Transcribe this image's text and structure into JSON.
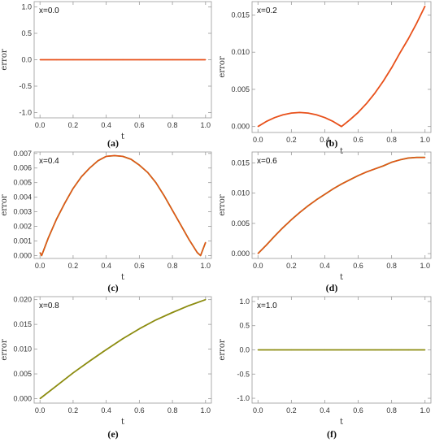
{
  "chart_data": [
    {
      "type": "line",
      "panel_label": "(a)",
      "annotation": "x=0.0",
      "xlabel": "t",
      "ylabel": "error",
      "xlim": [
        0,
        1
      ],
      "ylim": [
        -1.1,
        1.1
      ],
      "xticks": [
        "0.0",
        "0.2",
        "0.4",
        "0.6",
        "0.8",
        "1.0"
      ],
      "yticks": [
        "-1.0",
        "-0.5",
        "0.0",
        "0.5",
        "1.0"
      ],
      "ytick_values": [
        -1.0,
        -0.5,
        0.0,
        0.5,
        1.0
      ],
      "colors": [
        "#e8501a"
      ],
      "x": [
        0.0,
        0.1,
        0.2,
        0.3,
        0.4,
        0.5,
        0.6,
        0.7,
        0.8,
        0.9,
        1.0
      ],
      "y": [
        0,
        0,
        0,
        0,
        0,
        0,
        0,
        0,
        0,
        0,
        0
      ]
    },
    {
      "type": "line",
      "panel_label": "(b)",
      "annotation": "x=0.2",
      "xlabel": "t",
      "ylabel": "error",
      "xlim": [
        0,
        1
      ],
      "ylim": [
        -0.0008,
        0.0168
      ],
      "xticks": [
        "0.0",
        "0.2",
        "0.4",
        "0.6",
        "0.8",
        "1.0"
      ],
      "yticks": [
        "0.000",
        "0.005",
        "0.010",
        "0.015"
      ],
      "ytick_values": [
        0.0,
        0.005,
        0.01,
        0.015
      ],
      "colors": [
        "#e8501a"
      ],
      "x": [
        0.0,
        0.05,
        0.1,
        0.15,
        0.2,
        0.25,
        0.3,
        0.35,
        0.4,
        0.45,
        0.5,
        0.55,
        0.6,
        0.65,
        0.7,
        0.75,
        0.8,
        0.85,
        0.9,
        0.95,
        1.0
      ],
      "y": [
        0.0,
        0.00068,
        0.0012,
        0.00158,
        0.00181,
        0.00189,
        0.00181,
        0.00158,
        0.0012,
        0.00068,
        0.0,
        0.0009,
        0.0019,
        0.0031,
        0.0045,
        0.0061,
        0.0079,
        0.0099,
        0.0118,
        0.0139,
        0.0162
      ]
    },
    {
      "type": "line",
      "panel_label": "(c)",
      "annotation": "x=0.4",
      "xlabel": "t",
      "ylabel": "error",
      "xlim": [
        0,
        1
      ],
      "ylim": [
        -0.0002,
        0.0071
      ],
      "xticks": [
        "0.0",
        "0.2",
        "0.4",
        "0.6",
        "0.8",
        "1.0"
      ],
      "yticks": [
        "0.000",
        "0.001",
        "0.002",
        "0.003",
        "0.004",
        "0.005",
        "0.006",
        "0.007"
      ],
      "ytick_values": [
        0.0,
        0.001,
        0.002,
        0.003,
        0.004,
        0.005,
        0.006,
        0.007
      ],
      "colors": [
        "#8c8c10",
        "#e8501a"
      ],
      "x": [
        0.0,
        0.01,
        0.05,
        0.1,
        0.15,
        0.2,
        0.25,
        0.3,
        0.35,
        0.4,
        0.45,
        0.5,
        0.55,
        0.6,
        0.65,
        0.7,
        0.75,
        0.8,
        0.85,
        0.9,
        0.95,
        0.97,
        1.0
      ],
      "y": [
        0.0002,
        0.0,
        0.0012,
        0.0025,
        0.0036,
        0.0046,
        0.0054,
        0.006,
        0.0065,
        0.0068,
        0.00685,
        0.0068,
        0.0066,
        0.0062,
        0.0057,
        0.005,
        0.0041,
        0.0031,
        0.0021,
        0.0011,
        0.0002,
        0.0,
        0.0009
      ]
    },
    {
      "type": "line",
      "panel_label": "(d)",
      "annotation": "x=0.6",
      "xlabel": "t",
      "ylabel": "error",
      "xlim": [
        0,
        1
      ],
      "ylim": [
        -0.0008,
        0.0168
      ],
      "xticks": [
        "0.0",
        "0.2",
        "0.4",
        "0.6",
        "0.8",
        "1.0"
      ],
      "yticks": [
        "0.000",
        "0.005",
        "0.010",
        "0.015"
      ],
      "ytick_values": [
        0.0,
        0.005,
        0.01,
        0.015
      ],
      "colors": [
        "#8c8c10",
        "#e8501a"
      ],
      "x": [
        0.0,
        0.05,
        0.1,
        0.15,
        0.2,
        0.25,
        0.3,
        0.35,
        0.4,
        0.45,
        0.5,
        0.55,
        0.6,
        0.65,
        0.7,
        0.75,
        0.8,
        0.85,
        0.9,
        0.95,
        1.0
      ],
      "y": [
        0.0,
        0.0014,
        0.0029,
        0.0043,
        0.0056,
        0.0068,
        0.0079,
        0.0089,
        0.0098,
        0.0107,
        0.0115,
        0.0122,
        0.0129,
        0.0135,
        0.014,
        0.0145,
        0.0151,
        0.0155,
        0.0158,
        0.0159,
        0.0159
      ]
    },
    {
      "type": "line",
      "panel_label": "(e)",
      "annotation": "x=0.8",
      "xlabel": "t",
      "ylabel": "error",
      "xlim": [
        0,
        1
      ],
      "ylim": [
        -0.0009,
        0.0206
      ],
      "xticks": [
        "0.0",
        "0.2",
        "0.4",
        "0.6",
        "0.8",
        "1.0"
      ],
      "yticks": [
        "0.000",
        "0.005",
        "0.010",
        "0.015",
        "0.020"
      ],
      "ytick_values": [
        0.0,
        0.005,
        0.01,
        0.015,
        0.02
      ],
      "colors": [
        "#8c8c10"
      ],
      "x": [
        0.0,
        0.1,
        0.2,
        0.3,
        0.4,
        0.5,
        0.6,
        0.7,
        0.8,
        0.9,
        1.0
      ],
      "y": [
        0.0,
        0.0026,
        0.0052,
        0.0076,
        0.0099,
        0.0121,
        0.0141,
        0.0159,
        0.0174,
        0.0188,
        0.02
      ]
    },
    {
      "type": "line",
      "panel_label": "(f)",
      "annotation": "x=1.0",
      "xlabel": "t",
      "ylabel": "error",
      "xlim": [
        0,
        1
      ],
      "ylim": [
        -1.1,
        1.1
      ],
      "xticks": [
        "0.0",
        "0.2",
        "0.4",
        "0.6",
        "0.8",
        "1.0"
      ],
      "yticks": [
        "-1.0",
        "-0.5",
        "0.0",
        "0.5",
        "1.0"
      ],
      "ytick_values": [
        -1.0,
        -0.5,
        0.0,
        0.5,
        1.0
      ],
      "colors": [
        "#8c8c10"
      ],
      "x": [
        0.0,
        0.1,
        0.2,
        0.3,
        0.4,
        0.5,
        0.6,
        0.7,
        0.8,
        0.9,
        1.0
      ],
      "y": [
        0,
        0,
        0,
        0,
        0,
        0,
        0,
        0,
        0,
        0,
        0
      ]
    }
  ]
}
